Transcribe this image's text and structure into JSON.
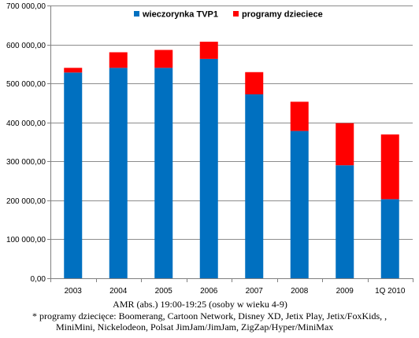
{
  "chart_data": {
    "type": "bar",
    "stacked": true,
    "categories": [
      "2003",
      "2004",
      "2005",
      "2006",
      "2007",
      "2008",
      "2009",
      "1Q 2010"
    ],
    "series": [
      {
        "name": "wieczorynka TVP1",
        "color": "#0070c0",
        "values": [
          528000,
          540000,
          540000,
          563000,
          472000,
          378000,
          290000,
          203000
        ]
      },
      {
        "name": "programy dzieciece",
        "color": "#ff0000",
        "values": [
          12000,
          40000,
          46000,
          44000,
          57000,
          75000,
          108000,
          166000
        ]
      }
    ],
    "y_ticks": [
      "0,00",
      "100 000,00",
      "200 000,00",
      "300 000,00",
      "400 000,00",
      "500 000,00",
      "600 000,00",
      "700 000,00"
    ],
    "ylim": [
      0,
      700000
    ],
    "grid": true,
    "legend_position": "top",
    "xlabel": "AMR (abs.) 19:00-19:25 (osoby w wieku 4-9)"
  },
  "footnote": {
    "line1": "* programy dziecięce: Boomerang, Cartoon Network, Disney XD, Jetix Play, Jetix/FoxKids, ,",
    "line2": "MiniMini, Nickelodeon, Polsat JimJam/JimJam, ZigZap/Hyper/MiniMax"
  }
}
